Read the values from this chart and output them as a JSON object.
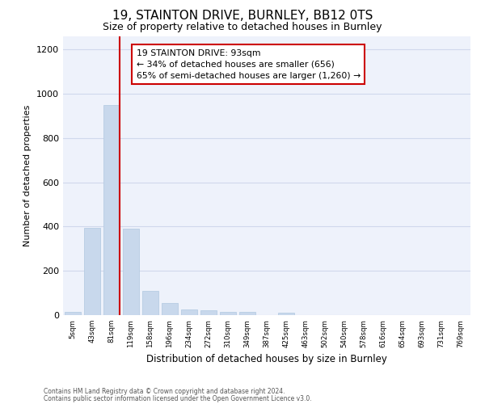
{
  "title1": "19, STAINTON DRIVE, BURNLEY, BB12 0TS",
  "title2": "Size of property relative to detached houses in Burnley",
  "xlabel": "Distribution of detached houses by size in Burnley",
  "ylabel": "Number of detached properties",
  "footer1": "Contains HM Land Registry data © Crown copyright and database right 2024.",
  "footer2": "Contains public sector information licensed under the Open Government Licence v3.0.",
  "categories": [
    "5sqm",
    "43sqm",
    "81sqm",
    "119sqm",
    "158sqm",
    "196sqm",
    "234sqm",
    "272sqm",
    "310sqm",
    "349sqm",
    "387sqm",
    "425sqm",
    "463sqm",
    "502sqm",
    "540sqm",
    "578sqm",
    "616sqm",
    "654sqm",
    "693sqm",
    "731sqm",
    "769sqm"
  ],
  "bar_values": [
    15,
    395,
    950,
    390,
    110,
    55,
    27,
    22,
    15,
    14,
    0,
    12,
    0,
    0,
    0,
    0,
    0,
    0,
    0,
    0,
    0
  ],
  "bar_color": "#c8d8ec",
  "bar_edge_color": "#b0c8e0",
  "redline_x": 2.425,
  "annotation_text_line1": "19 STAINTON DRIVE: 93sqm",
  "annotation_text_line2": "← 34% of detached houses are smaller (656)",
  "annotation_text_line3": "65% of semi-detached houses are larger (1,260) →",
  "annotation_box_color": "white",
  "annotation_box_edge": "#cc0000",
  "ylim": [
    0,
    1260
  ],
  "yticks": [
    0,
    200,
    400,
    600,
    800,
    1000,
    1200
  ],
  "grid_color": "#d0d8ec",
  "background_color": "#eef2fb",
  "title1_fontsize": 11,
  "title2_fontsize": 9
}
